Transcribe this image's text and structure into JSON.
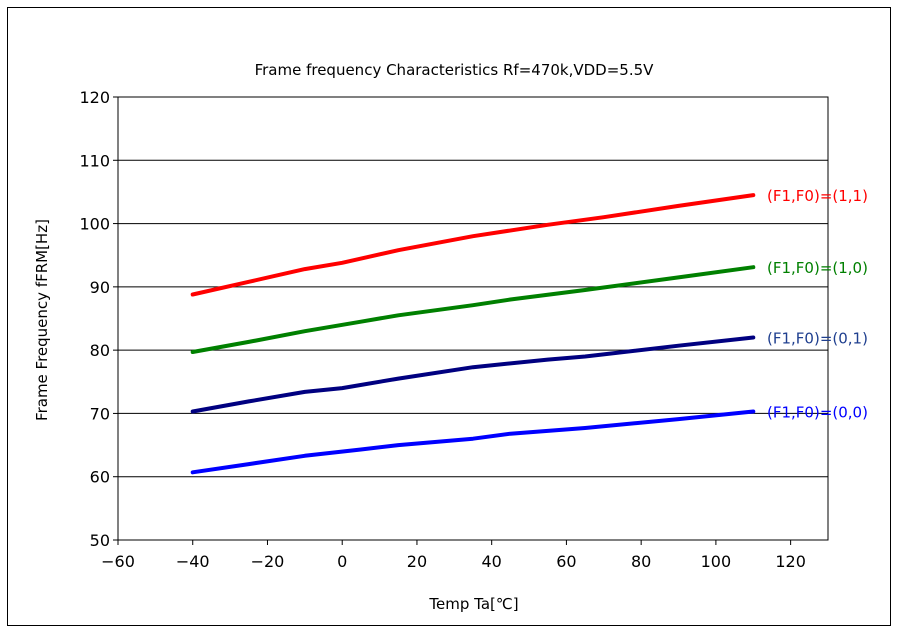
{
  "chart_data": {
    "type": "line",
    "title": "Frame frequency Characteristics  Rf=470k,VDD=5.5V",
    "xlabel": "Temp Ta[℃]",
    "ylabel": "Frame Frequency fFRM[Hz]",
    "xlim": [
      -60,
      130
    ],
    "ylim": [
      50,
      120
    ],
    "xticks": [
      -60,
      -40,
      -20,
      0,
      20,
      40,
      60,
      80,
      100,
      120
    ],
    "yticks": [
      50,
      60,
      70,
      80,
      90,
      100,
      110,
      120
    ],
    "xtick_labels": [
      "−60",
      "−40",
      "−20",
      "0",
      "20",
      "40",
      "60",
      "80",
      "100",
      "120"
    ],
    "ytick_labels": [
      "50",
      "60",
      "70",
      "80",
      "90",
      "100",
      "110",
      "120"
    ],
    "grid": "horizontal",
    "series": [
      {
        "name": "(F1,F0)=(1,1)",
        "color": "#ff0000",
        "x": [
          -40,
          -25,
          -10,
          0,
          15,
          35,
          55,
          70,
          90,
          110
        ],
        "y": [
          88.8,
          90.8,
          92.8,
          93.8,
          95.8,
          98.0,
          99.8,
          101.0,
          102.8,
          104.5
        ]
      },
      {
        "name": "(F1,F0)=(1,0)",
        "color": "#008000",
        "x": [
          -40,
          -25,
          -10,
          5,
          15,
          35,
          45,
          65,
          90,
          110
        ],
        "y": [
          79.7,
          81.3,
          83.0,
          84.5,
          85.5,
          87.1,
          88.0,
          89.5,
          91.5,
          93.1
        ]
      },
      {
        "name": "(F1,F0)=(0,1)",
        "color": "#000080",
        "x": [
          -40,
          -25,
          -10,
          0,
          15,
          35,
          55,
          65,
          90,
          110
        ],
        "y": [
          70.3,
          71.9,
          73.4,
          74.0,
          75.5,
          77.3,
          78.5,
          79.0,
          80.7,
          82.0
        ]
      },
      {
        "name": "(F1,F0)=(0,0)",
        "color": "#0000ff",
        "x": [
          -40,
          -25,
          -10,
          5,
          15,
          35,
          45,
          65,
          90,
          110
        ],
        "y": [
          60.7,
          62.0,
          63.3,
          64.3,
          65.0,
          66.0,
          66.8,
          67.7,
          69.1,
          70.3
        ]
      }
    ],
    "label_colors": [
      "#ff0000",
      "#008000",
      "#1f3f8f",
      "#0000ff"
    ]
  }
}
